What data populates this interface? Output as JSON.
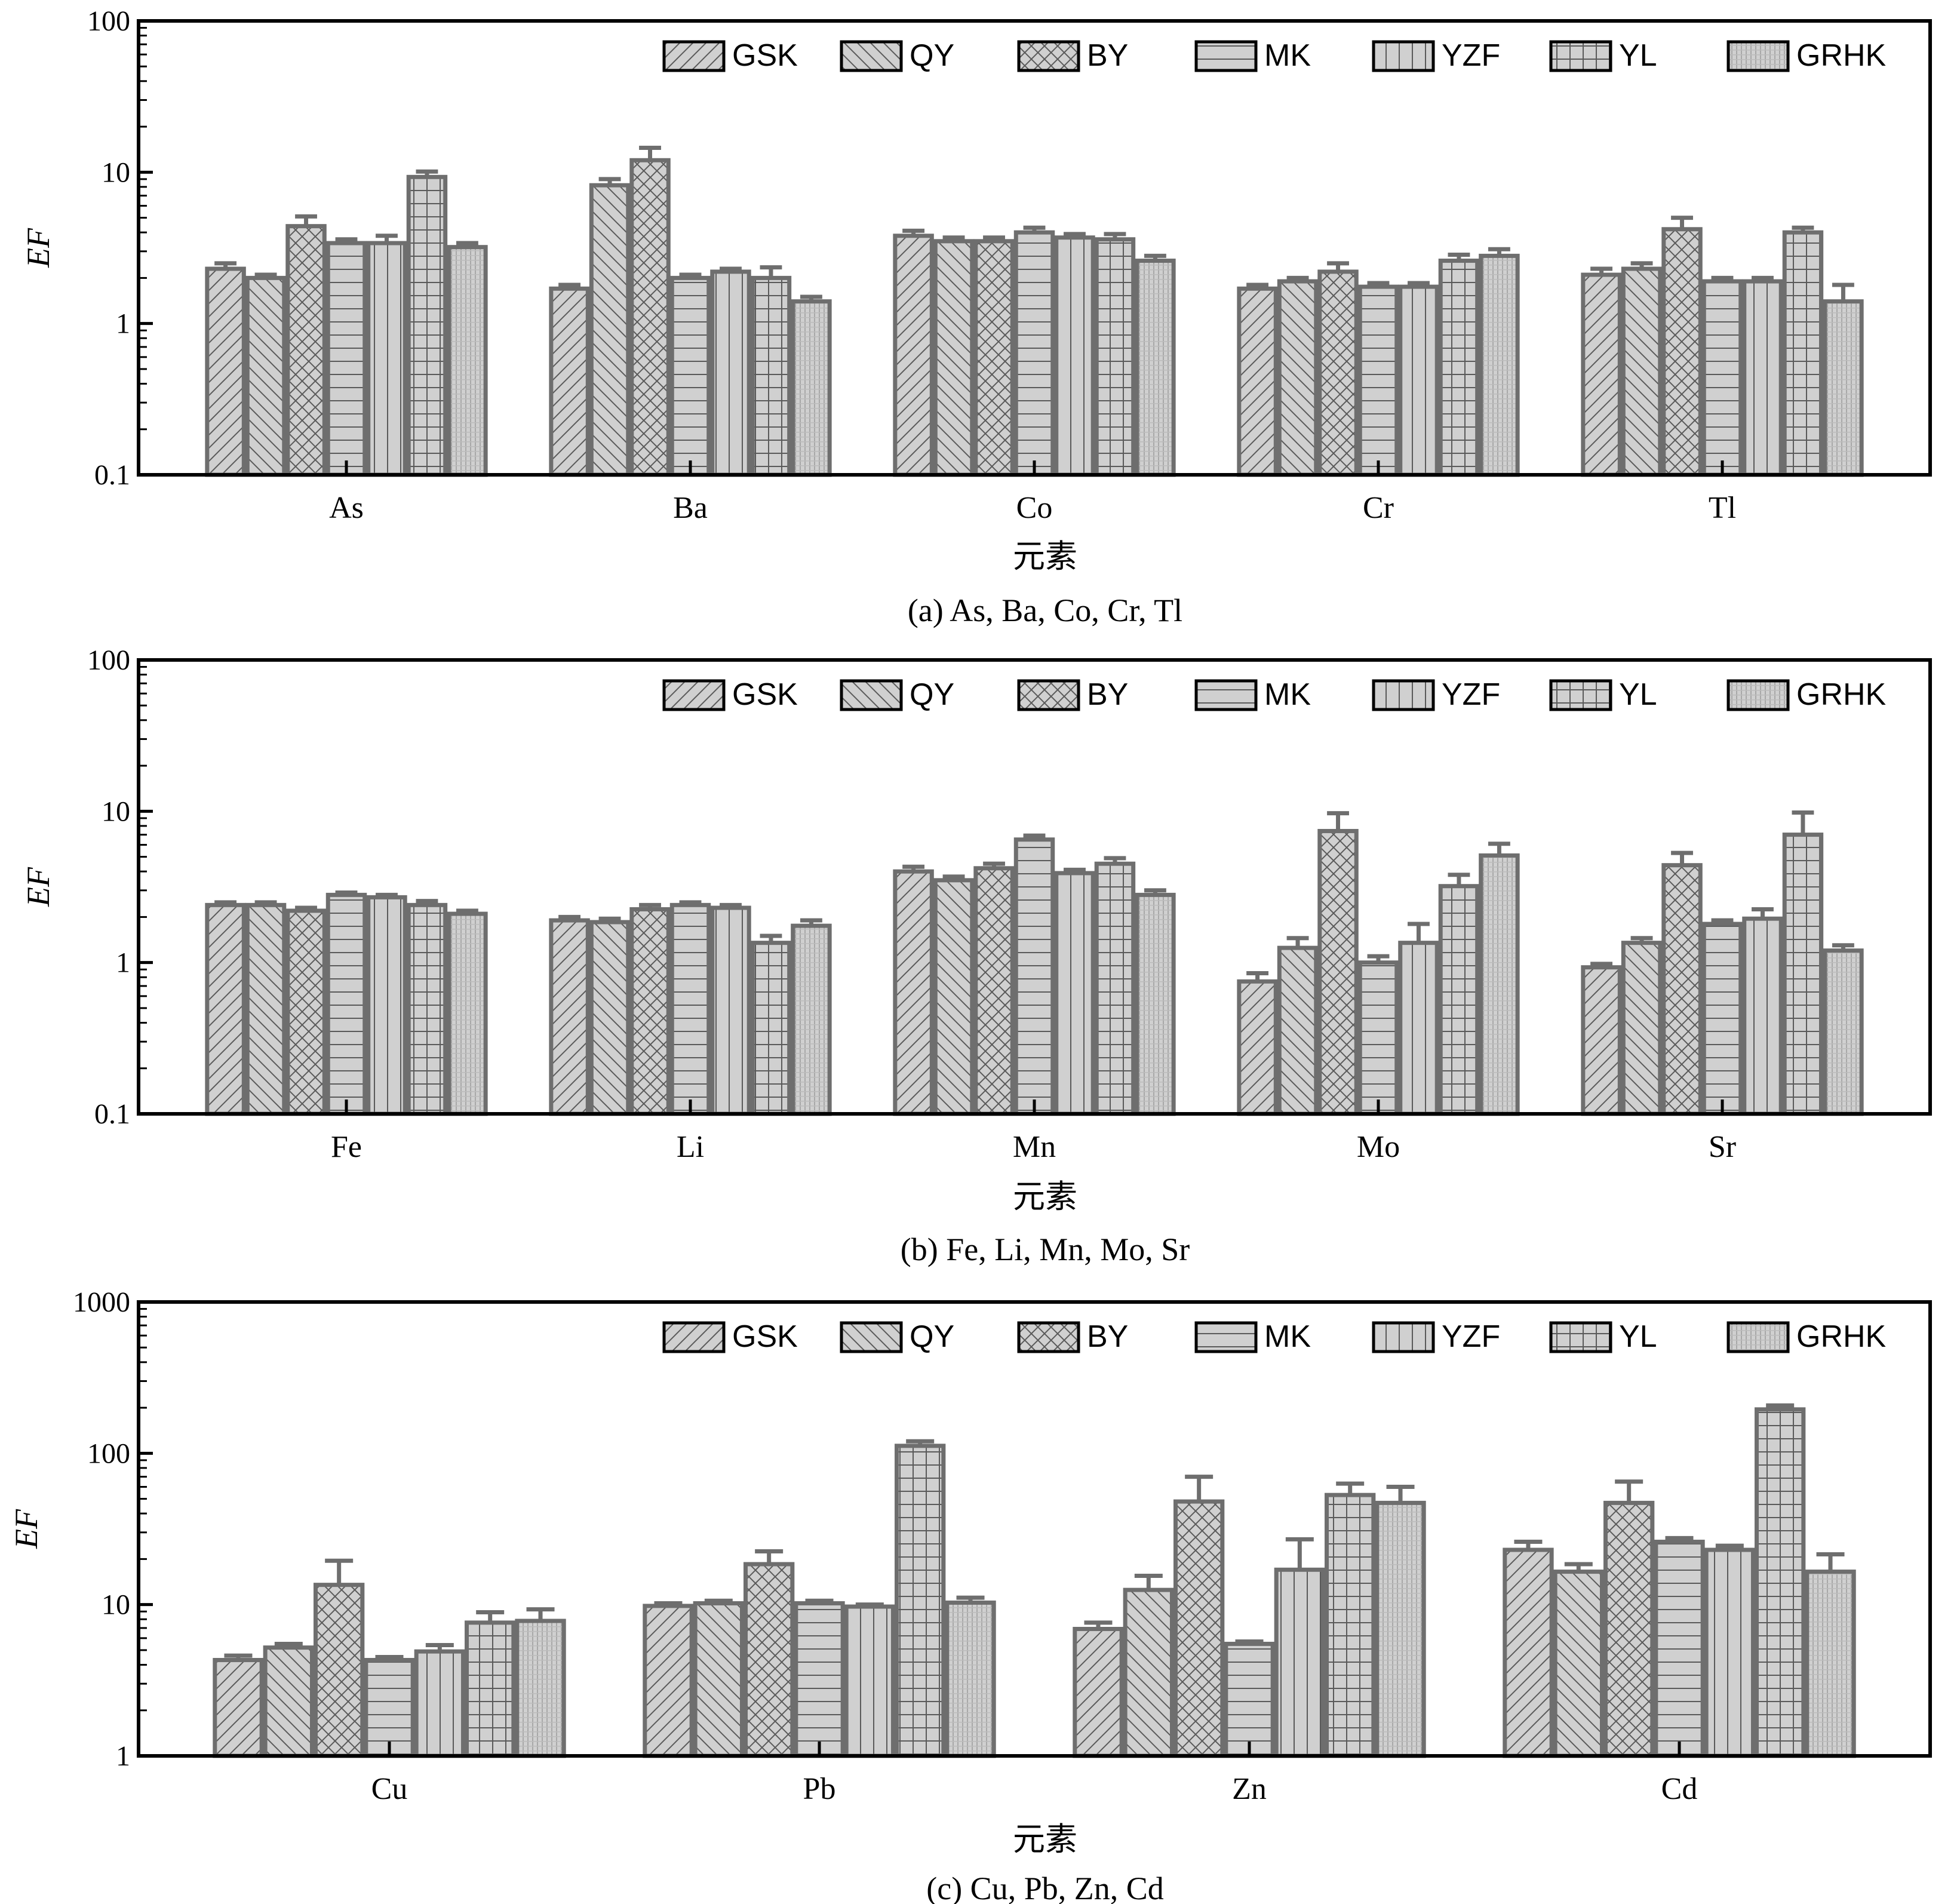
{
  "chart_data": [
    {
      "type": "bar",
      "caption": "(a) As, Ba, Co, Cr, Tl",
      "xlabel": "元素",
      "ylabel": "EF",
      "yscale": "log",
      "ylim": [
        0.1,
        100
      ],
      "ytick_labels": [
        "0.1",
        "1",
        "10",
        "100"
      ],
      "legend_position": "top-right",
      "categories": [
        "As",
        "Ba",
        "Co",
        "Cr",
        "Tl"
      ],
      "series": [
        {
          "name": "GSK",
          "values": [
            2.3,
            1.7,
            3.8,
            1.7,
            2.1
          ],
          "errors": [
            0.2,
            0.1,
            0.3,
            0.1,
            0.2
          ]
        },
        {
          "name": "QY",
          "values": [
            2.0,
            8.2,
            3.5,
            1.9,
            2.3
          ],
          "errors": [
            0.1,
            0.8,
            0.2,
            0.1,
            0.2
          ]
        },
        {
          "name": "BY",
          "values": [
            4.4,
            12.0,
            3.5,
            2.2,
            4.2
          ],
          "errors": [
            0.7,
            2.5,
            0.2,
            0.3,
            0.8
          ]
        },
        {
          "name": "MK",
          "values": [
            3.4,
            2.0,
            4.0,
            1.75,
            1.9
          ],
          "errors": [
            0.2,
            0.1,
            0.3,
            0.1,
            0.1
          ]
        },
        {
          "name": "YZF",
          "values": [
            3.4,
            2.2,
            3.7,
            1.75,
            1.9
          ],
          "errors": [
            0.4,
            0.1,
            0.2,
            0.1,
            0.1
          ]
        },
        {
          "name": "YL",
          "values": [
            9.3,
            2.0,
            3.6,
            2.6,
            4.0
          ],
          "errors": [
            0.8,
            0.35,
            0.3,
            0.25,
            0.3
          ]
        },
        {
          "name": "GRHK",
          "values": [
            3.2,
            1.4,
            2.6,
            2.8,
            1.4
          ],
          "errors": [
            0.2,
            0.1,
            0.2,
            0.3,
            0.4
          ]
        }
      ]
    },
    {
      "type": "bar",
      "caption": "(b) Fe, Li, Mn, Mo, Sr",
      "xlabel": "元素",
      "ylabel": "EF",
      "yscale": "log",
      "ylim": [
        0.1,
        100
      ],
      "ytick_labels": [
        "0.1",
        "1",
        "10",
        "100"
      ],
      "legend_position": "top-right",
      "categories": [
        "Fe",
        "Li",
        "Mn",
        "Mo",
        "Sr"
      ],
      "series": [
        {
          "name": "GSK",
          "values": [
            2.4,
            1.9,
            4.0,
            0.75,
            0.93
          ],
          "errors": [
            0.1,
            0.1,
            0.3,
            0.1,
            0.05
          ]
        },
        {
          "name": "QY",
          "values": [
            2.4,
            1.85,
            3.5,
            1.25,
            1.35
          ],
          "errors": [
            0.1,
            0.1,
            0.2,
            0.2,
            0.1
          ]
        },
        {
          "name": "BY",
          "values": [
            2.2,
            2.25,
            4.2,
            7.4,
            4.4
          ],
          "errors": [
            0.1,
            0.15,
            0.3,
            2.3,
            0.9
          ]
        },
        {
          "name": "MK",
          "values": [
            2.8,
            2.4,
            6.5,
            1.0,
            1.8
          ],
          "errors": [
            0.1,
            0.1,
            0.4,
            0.1,
            0.1
          ]
        },
        {
          "name": "YZF",
          "values": [
            2.7,
            2.3,
            3.9,
            1.35,
            1.95
          ],
          "errors": [
            0.1,
            0.1,
            0.2,
            0.45,
            0.3
          ]
        },
        {
          "name": "YL",
          "values": [
            2.4,
            1.35,
            4.5,
            3.2,
            7.0
          ],
          "errors": [
            0.15,
            0.15,
            0.4,
            0.6,
            2.8
          ]
        },
        {
          "name": "GRHK",
          "values": [
            2.1,
            1.75,
            2.8,
            5.1,
            1.2
          ],
          "errors": [
            0.1,
            0.15,
            0.2,
            1.0,
            0.1
          ]
        }
      ]
    },
    {
      "type": "bar",
      "caption": "(c) Cu, Pb, Zn, Cd",
      "xlabel": "元素",
      "ylabel": "EF",
      "yscale": "log",
      "ylim": [
        1,
        1000
      ],
      "ytick_labels": [
        "1",
        "10",
        "100",
        "1000"
      ],
      "legend_position": "top-right",
      "categories": [
        "Cu",
        "Pb",
        "Zn",
        "Cd"
      ],
      "series": [
        {
          "name": "GSK",
          "values": [
            4.3,
            9.8,
            6.9,
            23
          ],
          "errors": [
            0.3,
            0.4,
            0.7,
            3
          ]
        },
        {
          "name": "QY",
          "values": [
            5.2,
            10.2,
            12.5,
            16.5
          ],
          "errors": [
            0.3,
            0.4,
            3.0,
            2
          ]
        },
        {
          "name": "BY",
          "values": [
            13.5,
            18.5,
            48,
            47
          ],
          "errors": [
            6,
            4,
            22,
            18
          ]
        },
        {
          "name": "MK",
          "values": [
            4.3,
            10.2,
            5.5,
            26
          ],
          "errors": [
            0.2,
            0.4,
            0.2,
            1.5
          ]
        },
        {
          "name": "YZF",
          "values": [
            4.9,
            9.7,
            17,
            23
          ],
          "errors": [
            0.5,
            0.3,
            10,
            1.5
          ]
        },
        {
          "name": "YL",
          "values": [
            7.6,
            112,
            53,
            195
          ],
          "errors": [
            1.3,
            8,
            10,
            12
          ]
        },
        {
          "name": "GRHK",
          "values": [
            7.8,
            10.3,
            47,
            16.5
          ],
          "errors": [
            1.5,
            0.8,
            13,
            5
          ]
        }
      ]
    }
  ],
  "style": {
    "bar_fill": "#d0d0d0",
    "bar_stroke": "#6e6e6e",
    "hatch_stroke": "#5a5a5a",
    "axis_color": "#000000",
    "series_patterns": [
      "diag-fwd",
      "diag-back",
      "cross",
      "horiz",
      "vert",
      "grid",
      "dots"
    ]
  }
}
